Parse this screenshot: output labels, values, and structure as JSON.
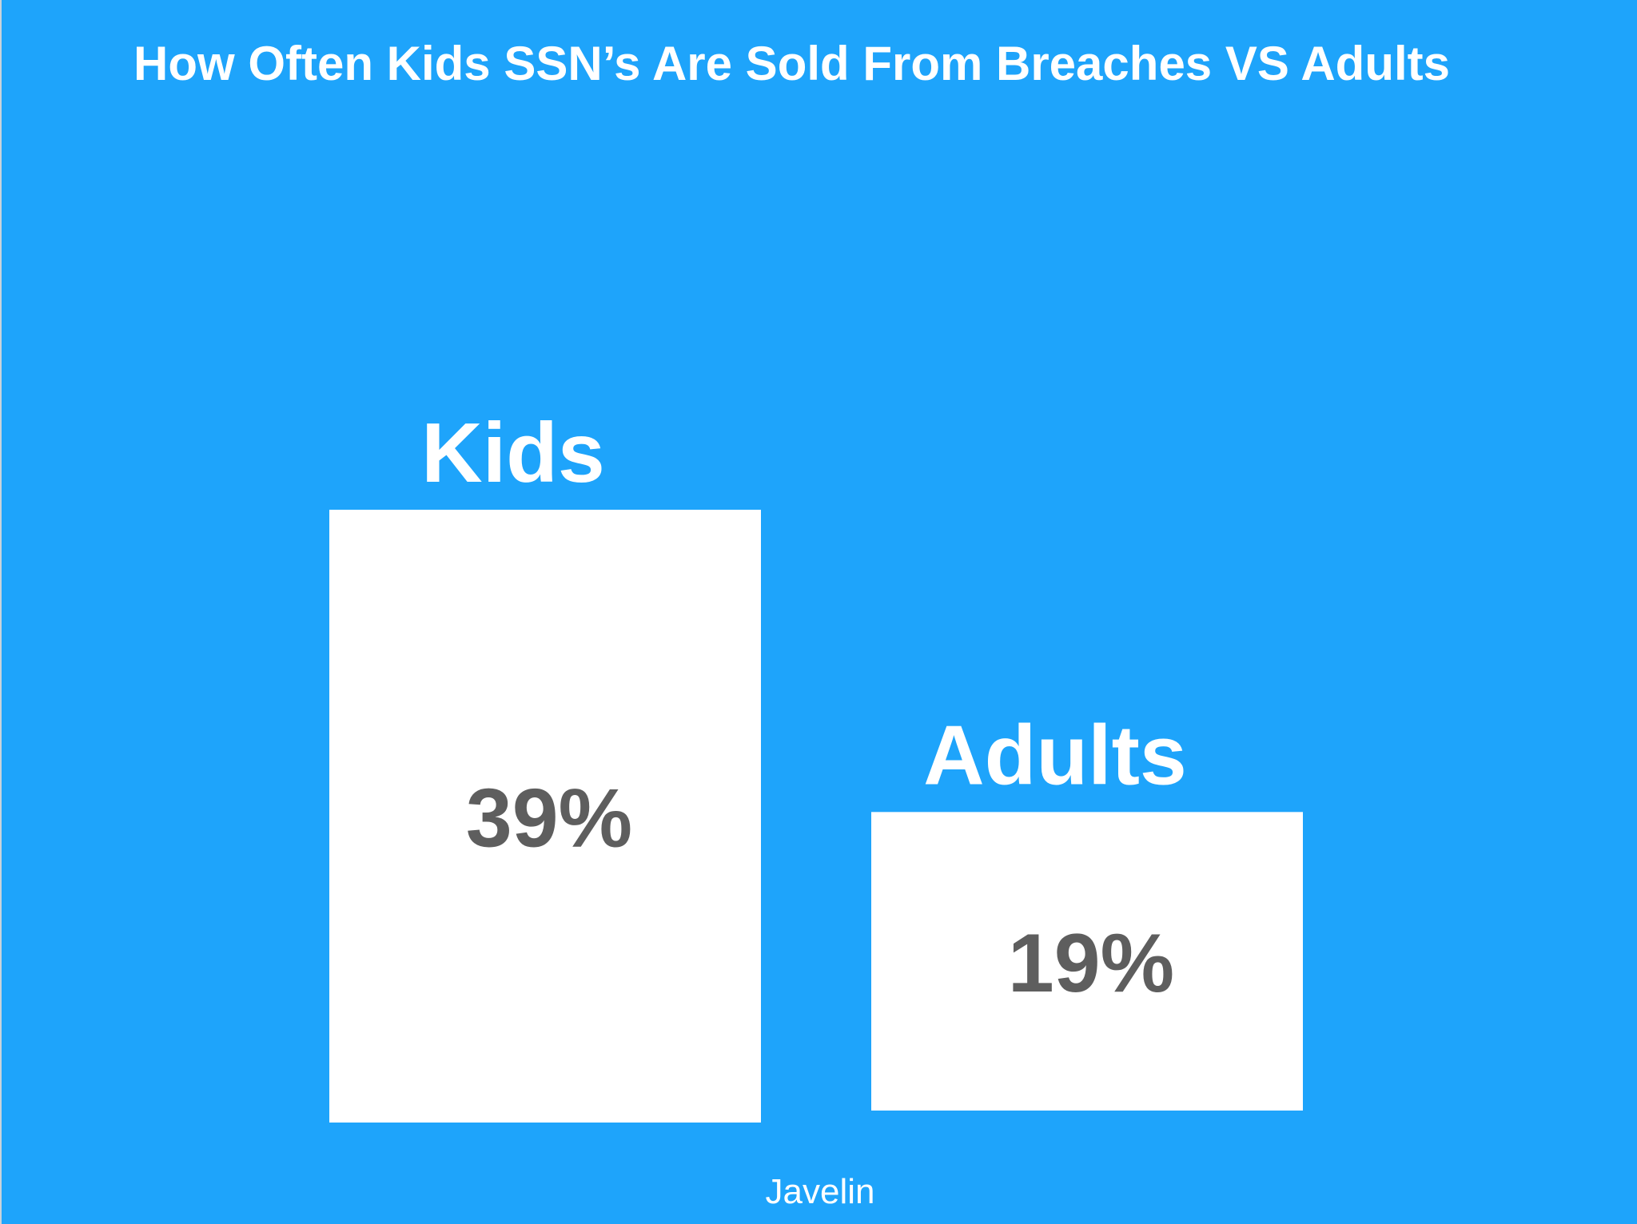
{
  "chart_data": {
    "type": "bar",
    "title": "How Often Kids SSN’s Are Sold From Breaches VS Adults",
    "categories": [
      "Kids",
      "Adults"
    ],
    "values": [
      39,
      19
    ],
    "value_labels": [
      "39%",
      "19%"
    ],
    "unit": "%",
    "xlabel": "",
    "ylabel": "",
    "ylim": [
      0,
      39
    ],
    "grid": false,
    "legend": "none"
  },
  "source": "Javelin",
  "colors": {
    "background": "#1ea4fb",
    "bar": "#ffffff",
    "category_label": "#ffffff",
    "value_label": "#5e5e5e"
  }
}
